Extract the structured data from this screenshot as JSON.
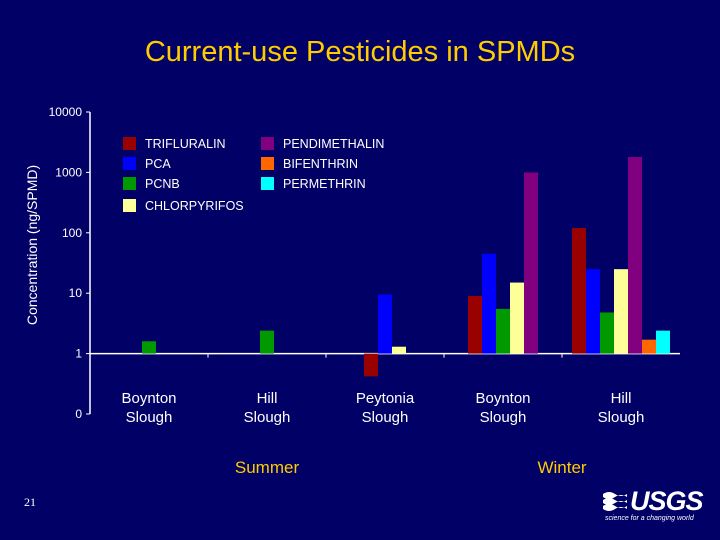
{
  "slide": {
    "title": "Current-use Pesticides in SPMDs",
    "number": "21",
    "logo": {
      "name": "USGS",
      "tagline": "science for a changing world"
    }
  },
  "chart_data": {
    "type": "bar",
    "title": "Current-use Pesticides in SPMDs",
    "ylabel": "Concentration (ng/SPMD)",
    "yscale": "log",
    "ylim": [
      0.1,
      10000
    ],
    "yticks": [
      {
        "value": 10000,
        "label": "10000"
      },
      {
        "value": 1000,
        "label": "1000"
      },
      {
        "value": 100,
        "label": "100"
      },
      {
        "value": 10,
        "label": "10"
      },
      {
        "value": 1,
        "label": "1"
      },
      {
        "value": 0.1,
        "label": "0"
      }
    ],
    "baseline": 1,
    "categories": [
      "Boynton\nSlough",
      "Hill\nSlough",
      "Peytonia\nSlough",
      "Boynton\nSlough",
      "Hill\nSlough"
    ],
    "groups": [
      {
        "label": "Summer",
        "categories": [
          0,
          1,
          2
        ]
      },
      {
        "label": "Winter",
        "categories": [
          3,
          4
        ]
      }
    ],
    "legend_position": "top-left",
    "series": [
      {
        "name": "TRIFLURALIN",
        "color": "#990000",
        "values": [
          null,
          null,
          0.42,
          9,
          120
        ]
      },
      {
        "name": "PCA",
        "color": "#0000ff",
        "values": [
          null,
          null,
          9.5,
          45,
          25
        ]
      },
      {
        "name": "PCNB",
        "color": "#009900",
        "values": [
          1.6,
          2.4,
          null,
          5.5,
          4.8
        ]
      },
      {
        "name": "CHLORPYRIFOS",
        "color": "#ffff99",
        "values": [
          null,
          null,
          1.3,
          15,
          25
        ]
      },
      {
        "name": "PENDIMETHALIN",
        "color": "#800080",
        "values": [
          null,
          null,
          null,
          1000,
          1800
        ]
      },
      {
        "name": "BIFENTHRIN",
        "color": "#ff6600",
        "values": [
          null,
          null,
          null,
          null,
          1.7
        ]
      },
      {
        "name": "PERMETHRIN",
        "color": "#00ffff",
        "values": [
          null,
          null,
          null,
          null,
          2.4
        ]
      }
    ]
  }
}
